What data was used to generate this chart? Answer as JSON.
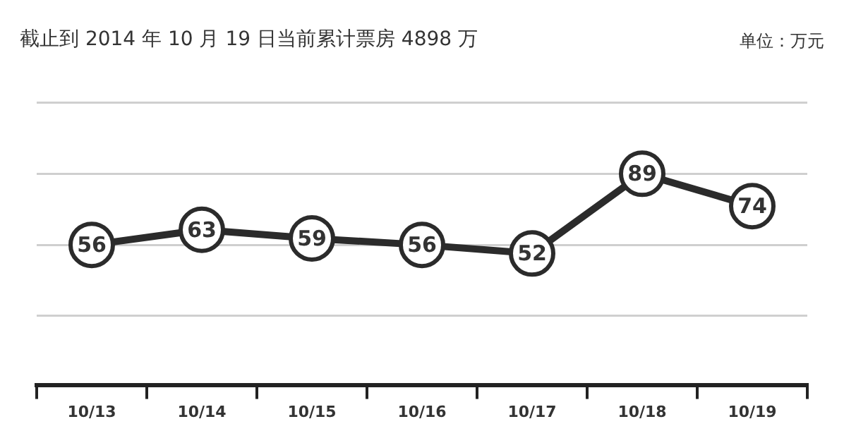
{
  "chart_data": {
    "type": "line",
    "title": "截止到 2014 年 10 月 19 日当前累计票房 4898 万",
    "annotations": [
      "单位：万元"
    ],
    "categories": [
      "10/13",
      "10/14",
      "10/15",
      "10/16",
      "10/17",
      "10/18",
      "10/19"
    ],
    "series": [
      {
        "color": "#2b2b2b",
        "values": [
          56,
          63,
          59,
          56,
          52,
          89,
          74
        ]
      }
    ],
    "ylim": [
      -9,
      122
    ],
    "yticks": [
      {
        "value": 23,
        "label": null
      },
      {
        "value": 56,
        "label": null
      },
      {
        "value": 89,
        "label": null
      },
      {
        "value": 122,
        "label": null
      }
    ],
    "grid": "y",
    "legend": false,
    "marker": "circle",
    "line_style": "solid",
    "data_labels": true,
    "tick_labels": "x"
  }
}
